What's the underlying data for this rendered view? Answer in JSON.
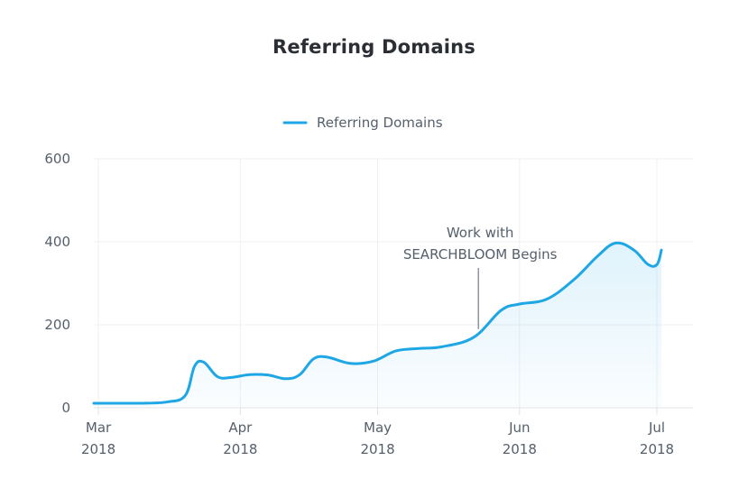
{
  "chart_data": {
    "type": "area",
    "title": "Referring Domains",
    "xlabel": "",
    "ylabel": "",
    "ylim": [
      0,
      600
    ],
    "yticks": [
      0,
      200,
      400,
      600
    ],
    "xlim": [
      "2018-02-28",
      "2018-07-01"
    ],
    "xticks": [
      {
        "date": "2018-03-01",
        "label_month": "Mar",
        "label_year": "2018"
      },
      {
        "date": "2018-04-01",
        "label_month": "Apr",
        "label_year": "2018"
      },
      {
        "date": "2018-05-01",
        "label_month": "May",
        "label_year": "2018"
      },
      {
        "date": "2018-06-01",
        "label_month": "Jun",
        "label_year": "2018"
      },
      {
        "date": "2018-07-01",
        "label_month": "Jul",
        "label_year": "2018"
      }
    ],
    "legend": {
      "position": "top-center"
    },
    "grid": true,
    "series": [
      {
        "name": "Referring Domains",
        "color": "#1ea7e4",
        "points": [
          {
            "x": "2018-02-28",
            "y": 11
          },
          {
            "x": "2018-03-03",
            "y": 11
          },
          {
            "x": "2018-03-10",
            "y": 11
          },
          {
            "x": "2018-03-16",
            "y": 14
          },
          {
            "x": "2018-03-20",
            "y": 30
          },
          {
            "x": "2018-03-22",
            "y": 100
          },
          {
            "x": "2018-03-24",
            "y": 110
          },
          {
            "x": "2018-03-27",
            "y": 75
          },
          {
            "x": "2018-03-30",
            "y": 73
          },
          {
            "x": "2018-04-03",
            "y": 80
          },
          {
            "x": "2018-04-07",
            "y": 79
          },
          {
            "x": "2018-04-11",
            "y": 70
          },
          {
            "x": "2018-04-14",
            "y": 80
          },
          {
            "x": "2018-04-17",
            "y": 118
          },
          {
            "x": "2018-04-20",
            "y": 122
          },
          {
            "x": "2018-04-25",
            "y": 107
          },
          {
            "x": "2018-04-30",
            "y": 112
          },
          {
            "x": "2018-05-05",
            "y": 137
          },
          {
            "x": "2018-05-10",
            "y": 143
          },
          {
            "x": "2018-05-15",
            "y": 147
          },
          {
            "x": "2018-05-22",
            "y": 170
          },
          {
            "x": "2018-05-28",
            "y": 235
          },
          {
            "x": "2018-06-01",
            "y": 250
          },
          {
            "x": "2018-06-07",
            "y": 262
          },
          {
            "x": "2018-06-13",
            "y": 310
          },
          {
            "x": "2018-06-18",
            "y": 365
          },
          {
            "x": "2018-06-22",
            "y": 397
          },
          {
            "x": "2018-06-26",
            "y": 380
          },
          {
            "x": "2018-06-29",
            "y": 346
          },
          {
            "x": "2018-07-01",
            "y": 345
          },
          {
            "x": "2018-07-02",
            "y": 380
          }
        ]
      }
    ],
    "annotations": [
      {
        "x": "2018-05-23",
        "lines": [
          "Work with",
          "SEARCHBLOOM Begins"
        ]
      }
    ]
  }
}
